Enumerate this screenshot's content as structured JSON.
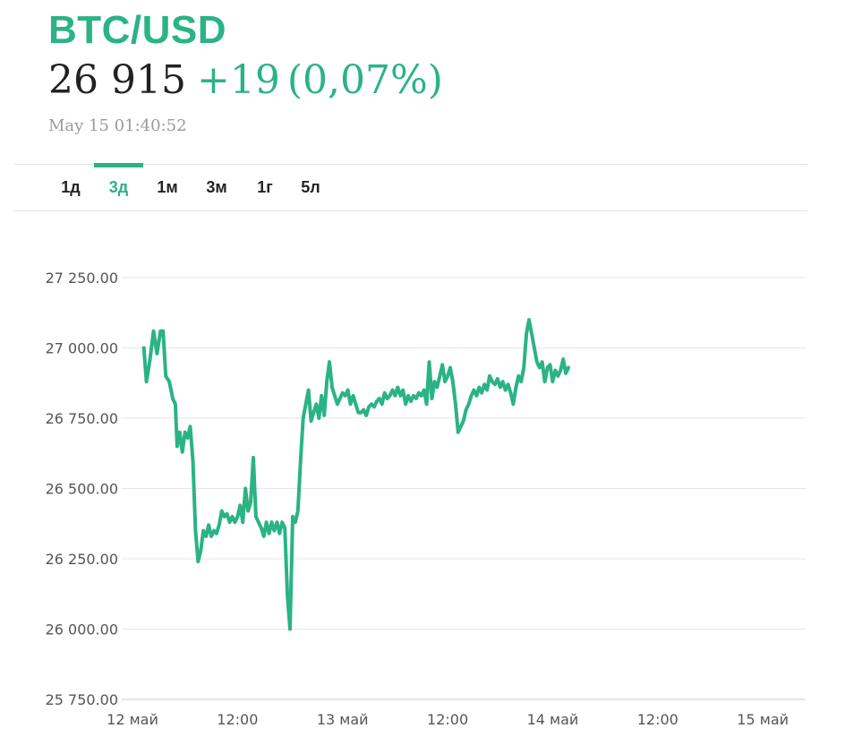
{
  "header": {
    "ticker": "BTC/USD",
    "last_price": "26 915",
    "change": "+19",
    "change_percent": "(0,07%)",
    "timestamp": "May 15 01:40:52"
  },
  "colors": {
    "accent": "#2bb383",
    "text": "#222222",
    "muted": "#9a9a9a",
    "grid": "#e6e6e6"
  },
  "period_tabs": [
    {
      "label": "1д",
      "active": false
    },
    {
      "label": "3д",
      "active": true
    },
    {
      "label": "1м",
      "active": false
    },
    {
      "label": "3м",
      "active": false
    },
    {
      "label": "1г",
      "active": false
    },
    {
      "label": "5л",
      "active": false
    }
  ],
  "chart_data": {
    "type": "line",
    "title": "",
    "xlabel": "",
    "ylabel": "",
    "ylim": [
      25750,
      27250
    ],
    "grid": true,
    "y_ticks": [
      25750,
      26000,
      26250,
      26500,
      26750,
      27000,
      27250
    ],
    "y_tick_labels": [
      "25 750.00",
      "26 000.00",
      "26 250.00",
      "26 500.00",
      "26 750.00",
      "27 000.00",
      "27 250.00"
    ],
    "x_ticks": [
      {
        "at": 0,
        "label": "12 май"
      },
      {
        "at": 12,
        "label": "12:00"
      },
      {
        "at": 24,
        "label": "13 май"
      },
      {
        "at": 36,
        "label": "12:00"
      },
      {
        "at": 48,
        "label": "14 май"
      },
      {
        "at": 60,
        "label": "12:00"
      },
      {
        "at": 72,
        "label": "15 май"
      }
    ],
    "x_units": "hours since 12 май 00:00",
    "series": [
      {
        "color": "#2bb383",
        "points": [
          [
            1.3,
            27000
          ],
          [
            1.6,
            26880
          ],
          [
            2.0,
            26960
          ],
          [
            2.4,
            27060
          ],
          [
            2.8,
            26980
          ],
          [
            3.2,
            27060
          ],
          [
            3.5,
            27060
          ],
          [
            3.8,
            26900
          ],
          [
            4.2,
            26880
          ],
          [
            4.6,
            26820
          ],
          [
            4.9,
            26800
          ],
          [
            5.1,
            26650
          ],
          [
            5.4,
            26700
          ],
          [
            5.7,
            26630
          ],
          [
            6.0,
            26700
          ],
          [
            6.3,
            26680
          ],
          [
            6.6,
            26720
          ],
          [
            6.9,
            26600
          ],
          [
            7.2,
            26350
          ],
          [
            7.5,
            26240
          ],
          [
            7.8,
            26280
          ],
          [
            8.1,
            26350
          ],
          [
            8.4,
            26330
          ],
          [
            8.7,
            26370
          ],
          [
            9.0,
            26330
          ],
          [
            9.3,
            26350
          ],
          [
            9.6,
            26340
          ],
          [
            9.9,
            26370
          ],
          [
            10.2,
            26420
          ],
          [
            10.5,
            26400
          ],
          [
            10.8,
            26410
          ],
          [
            11.1,
            26380
          ],
          [
            11.4,
            26400
          ],
          [
            11.7,
            26380
          ],
          [
            12.0,
            26400
          ],
          [
            12.3,
            26440
          ],
          [
            12.6,
            26380
          ],
          [
            12.9,
            26500
          ],
          [
            13.2,
            26420
          ],
          [
            13.5,
            26450
          ],
          [
            13.8,
            26610
          ],
          [
            14.1,
            26400
          ],
          [
            14.4,
            26380
          ],
          [
            14.7,
            26360
          ],
          [
            15.0,
            26330
          ],
          [
            15.3,
            26380
          ],
          [
            15.6,
            26340
          ],
          [
            15.9,
            26380
          ],
          [
            16.2,
            26350
          ],
          [
            16.5,
            26380
          ],
          [
            16.8,
            26340
          ],
          [
            17.1,
            26380
          ],
          [
            17.4,
            26360
          ],
          [
            17.7,
            26120
          ],
          [
            18.0,
            26000
          ],
          [
            18.3,
            26400
          ],
          [
            18.6,
            26380
          ],
          [
            18.9,
            26420
          ],
          [
            19.2,
            26600
          ],
          [
            19.5,
            26750
          ],
          [
            19.8,
            26800
          ],
          [
            20.1,
            26850
          ],
          [
            20.4,
            26740
          ],
          [
            20.7,
            26770
          ],
          [
            21.0,
            26800
          ],
          [
            21.3,
            26750
          ],
          [
            21.6,
            26830
          ],
          [
            21.9,
            26760
          ],
          [
            22.2,
            26880
          ],
          [
            22.5,
            26950
          ],
          [
            22.8,
            26860
          ],
          [
            23.1,
            26830
          ],
          [
            23.4,
            26800
          ],
          [
            23.7,
            26820
          ],
          [
            24.0,
            26840
          ],
          [
            24.3,
            26830
          ],
          [
            24.6,
            26850
          ],
          [
            24.9,
            26800
          ],
          [
            25.2,
            26830
          ],
          [
            25.5,
            26800
          ],
          [
            25.8,
            26770
          ],
          [
            26.1,
            26770
          ],
          [
            26.4,
            26780
          ],
          [
            26.7,
            26760
          ],
          [
            27.0,
            26790
          ],
          [
            27.3,
            26800
          ],
          [
            27.6,
            26790
          ],
          [
            27.9,
            26810
          ],
          [
            28.2,
            26820
          ],
          [
            28.5,
            26800
          ],
          [
            28.8,
            26840
          ],
          [
            29.1,
            26820
          ],
          [
            29.4,
            26830
          ],
          [
            29.7,
            26850
          ],
          [
            30.0,
            26830
          ],
          [
            30.3,
            26860
          ],
          [
            30.6,
            26830
          ],
          [
            30.9,
            26850
          ],
          [
            31.2,
            26800
          ],
          [
            31.5,
            26830
          ],
          [
            31.8,
            26810
          ],
          [
            32.1,
            26830
          ],
          [
            32.4,
            26820
          ],
          [
            32.7,
            26840
          ],
          [
            33.0,
            26830
          ],
          [
            33.3,
            26850
          ],
          [
            33.6,
            26800
          ],
          [
            33.9,
            26950
          ],
          [
            34.2,
            26820
          ],
          [
            34.5,
            26880
          ],
          [
            34.8,
            26860
          ],
          [
            35.1,
            26900
          ],
          [
            35.4,
            26940
          ],
          [
            35.7,
            26880
          ],
          [
            36.0,
            26900
          ],
          [
            36.3,
            26930
          ],
          [
            36.6,
            26880
          ],
          [
            36.9,
            26800
          ],
          [
            37.2,
            26700
          ],
          [
            37.5,
            26720
          ],
          [
            37.8,
            26740
          ],
          [
            38.1,
            26780
          ],
          [
            38.4,
            26800
          ],
          [
            38.7,
            26830
          ],
          [
            39.0,
            26850
          ],
          [
            39.3,
            26830
          ],
          [
            39.6,
            26860
          ],
          [
            39.9,
            26840
          ],
          [
            40.2,
            26870
          ],
          [
            40.5,
            26850
          ],
          [
            40.8,
            26900
          ],
          [
            41.1,
            26880
          ],
          [
            41.4,
            26870
          ],
          [
            41.7,
            26890
          ],
          [
            42.0,
            26860
          ],
          [
            42.3,
            26880
          ],
          [
            42.6,
            26850
          ],
          [
            42.9,
            26870
          ],
          [
            43.2,
            26840
          ],
          [
            43.5,
            26800
          ],
          [
            43.8,
            26860
          ],
          [
            44.1,
            26900
          ],
          [
            44.4,
            26880
          ],
          [
            44.7,
            26930
          ],
          [
            45.0,
            27050
          ],
          [
            45.3,
            27100
          ],
          [
            45.6,
            27050
          ],
          [
            45.9,
            27000
          ],
          [
            46.2,
            26950
          ],
          [
            46.5,
            26930
          ],
          [
            46.8,
            26950
          ],
          [
            47.1,
            26880
          ],
          [
            47.4,
            26930
          ],
          [
            47.7,
            26940
          ],
          [
            48.0,
            26880
          ],
          [
            48.3,
            26920
          ],
          [
            48.6,
            26900
          ],
          [
            48.9,
            26920
          ],
          [
            49.2,
            26960
          ],
          [
            49.5,
            26910
          ],
          [
            49.8,
            26930
          ]
        ]
      }
    ]
  }
}
